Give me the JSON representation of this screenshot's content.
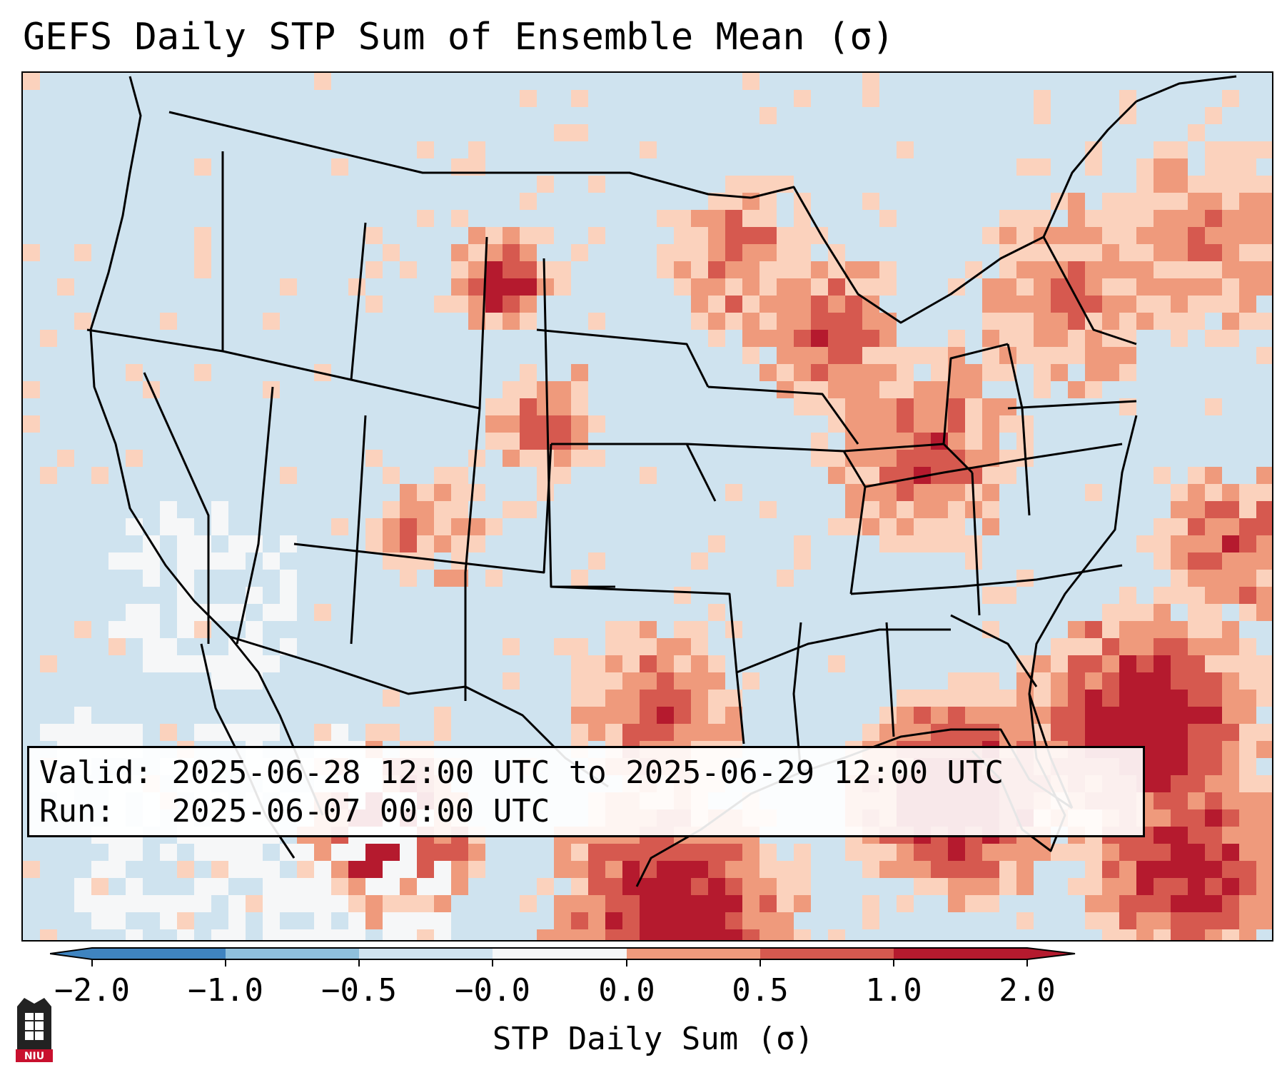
{
  "title": "GEFS Daily STP Sum of Ensemble Mean (σ)",
  "info": {
    "valid_label": "Valid:",
    "valid_value": "2025-06-28 12:00 UTC to 2025-06-29 12:00 UTC",
    "run_label": "Run:",
    "run_value": "2025-06-07 00:00 UTC"
  },
  "colorbar": {
    "label": "STP Daily Sum (σ)",
    "ticks": [
      "−2.0",
      "−1.0",
      "−0.5",
      "−0.0",
      "0.0",
      "0.5",
      "1.0",
      "2.0"
    ],
    "colors": [
      "#3f84c0",
      "#8fc0dc",
      "#d0e3ef",
      "#f6f7f8",
      "#fbd2bd",
      "#ef9a7c",
      "#d6594f",
      "#b51a2e"
    ],
    "extend": "both"
  },
  "map": {
    "region": "CONUS",
    "background_color": "#cfe3ef",
    "anomaly_regions": [
      {
        "name": "Southeast US / Gulf Coast",
        "level": "high"
      },
      {
        "name": "Western Atlantic off Carolinas/Georgia",
        "level": "high"
      },
      {
        "name": "Northern Mexico (Sierra Madre)",
        "level": "high"
      },
      {
        "name": "Eastern Montana / Northern Plains",
        "level": "moderate"
      },
      {
        "name": "Great Lakes / Ohio Valley",
        "level": "moderate"
      },
      {
        "name": "Southern Great Plains / Texas",
        "level": "moderate"
      },
      {
        "name": "California / Desert Southwest",
        "level": "neutral"
      },
      {
        "name": "Eastern Pacific off California",
        "level": "neutral"
      }
    ]
  },
  "logo": {
    "text": "NIU"
  }
}
